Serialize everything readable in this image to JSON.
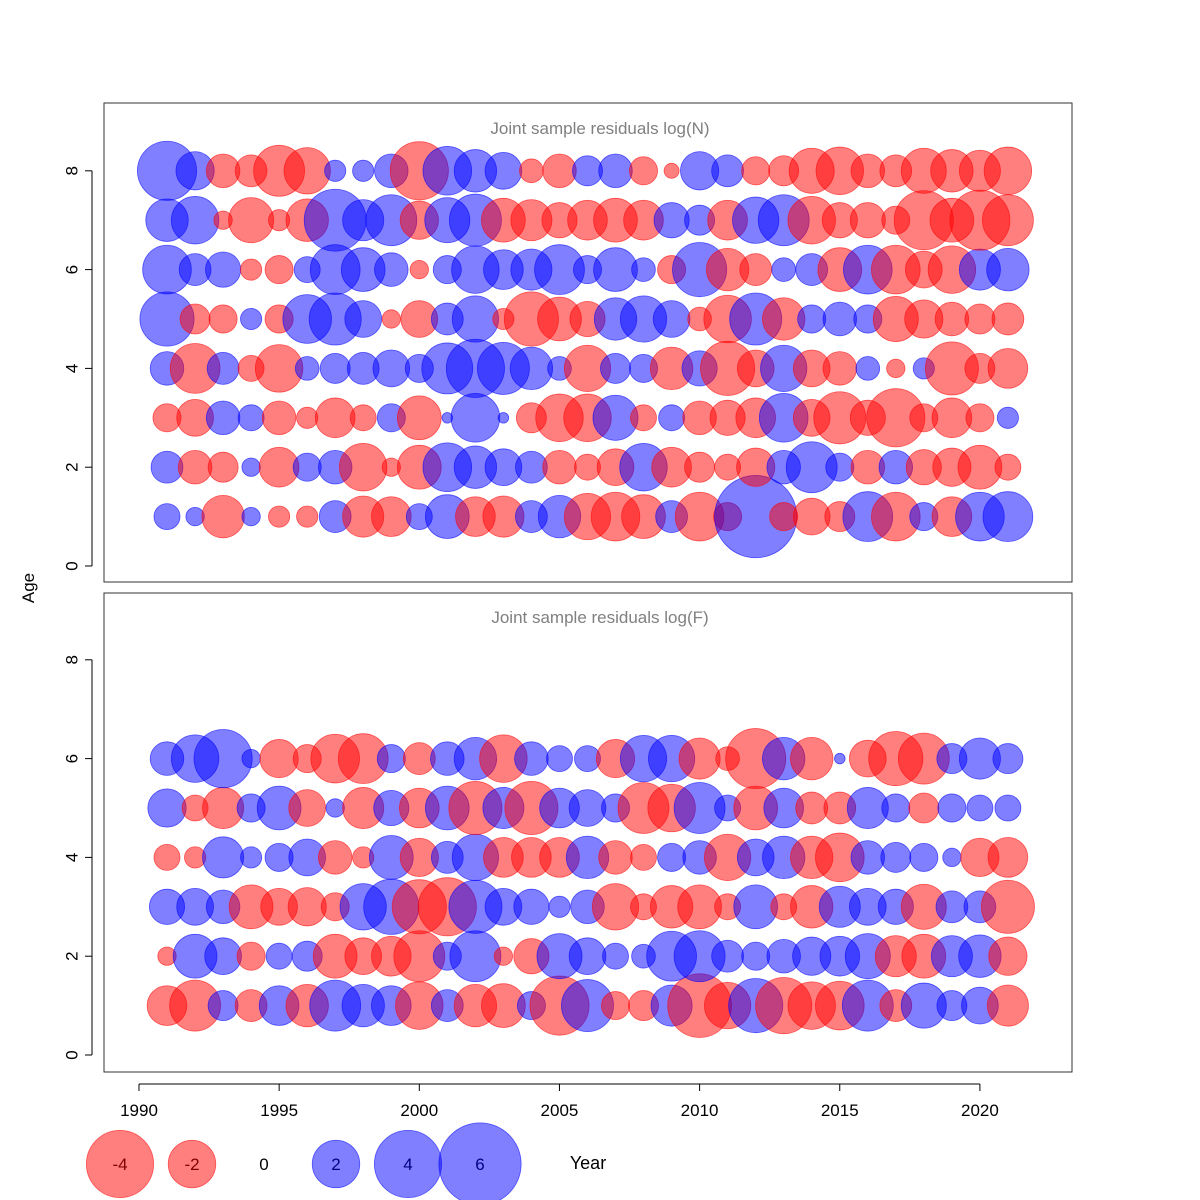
{
  "chart_data": {
    "type": "scatter",
    "shared_axis": {
      "xlabel": "Year",
      "ylabel": "Age",
      "x_ticks": [
        1990,
        1995,
        2000,
        2005,
        2010,
        2015,
        2020
      ],
      "y_ticks": [
        0,
        2,
        4,
        6,
        8
      ],
      "years": [
        1991,
        1992,
        1993,
        1994,
        1995,
        1996,
        1997,
        1998,
        1999,
        2000,
        2001,
        2002,
        2003,
        2004,
        2005,
        2006,
        2007,
        2008,
        2009,
        2010,
        2011,
        2012,
        2013,
        2014,
        2015,
        2016,
        2017,
        2018,
        2019,
        2020,
        2021
      ]
    },
    "colors": {
      "negative": "#ff0000",
      "positive": "#0000ff",
      "fill_opacity": 0.5
    },
    "legend": {
      "position": "bottom-left",
      "values": [
        -4,
        -2,
        0,
        2,
        4,
        6
      ],
      "labels": [
        "-4",
        "-2",
        "0",
        "2",
        "4",
        "6"
      ]
    },
    "panels": [
      {
        "title": "Joint sample residuals log(N)",
        "ages": [
          1,
          2,
          3,
          4,
          5,
          6,
          7,
          8
        ],
        "residuals": [
          [
            0.6,
            0.3,
            -1.6,
            0.3,
            -0.4,
            -0.4,
            0.9,
            -1.5,
            -1.4,
            0.6,
            1.7,
            -1.4,
            -1.5,
            0.9,
            1.6,
            -1.9,
            -2.1,
            -1.7,
            0.9,
            -2.1,
            -0.7,
            6.0,
            -0.7,
            -1.2,
            -0.8,
            2.2,
            -2.1,
            0.7,
            -1.4,
            2.1,
            2.2
          ],
          [
            0.9,
            -1.0,
            -0.8,
            0.3,
            -1.4,
            0.7,
            1.0,
            -2.0,
            -0.3,
            -1.7,
            2.1,
            1.6,
            1.2,
            0.9,
            -1.0,
            -0.6,
            -1.2,
            2.0,
            -1.4,
            -0.8,
            -0.6,
            -1.3,
            1.0,
            2.3,
            0.7,
            -1.0,
            1.0,
            -1.1,
            -1.3,
            -1.7,
            -0.6
          ],
          [
            -0.7,
            -1.2,
            1.0,
            0.6,
            -1.0,
            -0.4,
            -1.4,
            -0.6,
            0.7,
            -1.7,
            0.1,
            2.1,
            0.1,
            -0.8,
            -2.0,
            -2.0,
            1.8,
            -0.6,
            0.6,
            -1.0,
            -1.1,
            -1.4,
            2.1,
            -1.2,
            -2.4,
            -1.1,
            -3.0,
            -0.7,
            -1.4,
            -0.7,
            0.4
          ],
          [
            1.0,
            -2.2,
            0.9,
            -0.6,
            -2.0,
            0.5,
            0.8,
            0.9,
            1.2,
            0.7,
            2.3,
            3.0,
            2.4,
            1.6,
            0.5,
            -1.9,
            0.8,
            0.7,
            -1.6,
            1.1,
            -2.6,
            -1.2,
            1.9,
            -1.2,
            -1.0,
            0.5,
            -0.3,
            0.4,
            -2.5,
            -0.8,
            -1.4
          ],
          [
            2.6,
            -0.8,
            -0.7,
            0.4,
            -0.7,
            2.1,
            2.4,
            1.2,
            -0.3,
            -1.2,
            0.9,
            1.9,
            -0.4,
            -2.6,
            -1.7,
            -1.1,
            1.6,
            1.9,
            1.2,
            -0.5,
            -2.0,
            2.4,
            -1.6,
            0.7,
            1.0,
            0.7,
            -1.8,
            -1.3,
            -1.0,
            -0.8,
            -0.9
          ],
          [
            2.1,
            0.9,
            1.1,
            -0.4,
            -0.7,
            0.6,
            2.2,
            1.7,
            1.0,
            -0.3,
            0.7,
            2.0,
            1.4,
            1.5,
            2.2,
            0.7,
            1.7,
            0.5,
            -0.7,
            2.6,
            -1.6,
            -0.9,
            0.5,
            0.9,
            -1.7,
            2.1,
            -2.1,
            -1.2,
            -2.0,
            1.5,
            1.6
          ],
          [
            1.6,
            2.0,
            -0.3,
            -1.8,
            -0.4,
            -1.6,
            3.4,
            1.5,
            2.3,
            -1.3,
            1.8,
            2.4,
            -1.7,
            -1.5,
            -1.1,
            -1.4,
            -1.7,
            -1.4,
            1.1,
            0.8,
            -1.4,
            1.9,
            2.3,
            -2.0,
            -1.1,
            -1.1,
            -0.7,
            -3.1,
            -1.7,
            -3.2,
            -2.3
          ],
          [
            3.1,
            1.3,
            -1.0,
            -0.9,
            -2.3,
            -1.9,
            0.4,
            0.4,
            1.0,
            -3.0,
            2.1,
            1.6,
            1.2,
            -0.5,
            -1.0,
            0.8,
            1.0,
            -0.7,
            -0.2,
            1.3,
            0.9,
            -0.7,
            -0.8,
            -1.8,
            -2.0,
            -1.0,
            -0.9,
            -1.8,
            -1.6,
            -1.5,
            -2.0
          ]
        ]
      },
      {
        "title": "Joint sample residuals log(F)",
        "ages": [
          1,
          2,
          3,
          4,
          5,
          6
        ],
        "residuals": [
          [
            -1.4,
            -2.3,
            0.8,
            -0.9,
            1.4,
            -1.6,
            2.3,
            1.6,
            1.4,
            -2.0,
            0.9,
            -1.6,
            -1.7,
            0.7,
            -3.1,
            2.4,
            -0.7,
            -0.8,
            1.5,
            -3.6,
            -1.9,
            2.6,
            -2.8,
            -2.0,
            -2.1,
            2.3,
            -0.9,
            1.8,
            0.8,
            1.2,
            -1.5
          ],
          [
            -0.3,
            1.7,
            1.2,
            -0.7,
            0.6,
            0.8,
            -1.7,
            -1.2,
            -1.4,
            -2.3,
            0.7,
            2.3,
            -0.3,
            -1.1,
            1.8,
            1.2,
            0.6,
            0.5,
            2.2,
            2.3,
            0.9,
            0.7,
            1.0,
            1.3,
            1.4,
            1.8,
            -1.5,
            -1.7,
            1.5,
            1.6,
            -1.3
          ],
          [
            1.1,
            1.2,
            1.0,
            -1.7,
            -1.2,
            -1.3,
            -0.7,
            1.9,
            2.7,
            -2.6,
            -3.0,
            2.5,
            1.2,
            1.1,
            0.4,
            1.0,
            -1.9,
            -0.6,
            -1.6,
            -1.7,
            -0.6,
            1.7,
            -0.6,
            -1.6,
            1.5,
            1.2,
            1.1,
            -1.8,
            0.9,
            0.9,
            -2.5
          ],
          [
            -0.6,
            -0.4,
            1.5,
            0.4,
            0.7,
            1.2,
            -1.0,
            -0.4,
            1.7,
            -1.3,
            0.9,
            1.9,
            -1.4,
            -1.4,
            -1.4,
            1.6,
            -1.0,
            -0.6,
            0.7,
            1.0,
            -1.9,
            1.2,
            1.6,
            -1.6,
            -2.1,
            1.0,
            0.8,
            0.7,
            0.3,
            -1.3,
            -1.4
          ],
          [
            1.3,
            -0.6,
            -1.5,
            0.7,
            1.7,
            -1.2,
            0.3,
            -1.5,
            1.1,
            -1.4,
            1.7,
            -2.5,
            1.5,
            -2.5,
            1.4,
            1.2,
            0.7,
            -2.3,
            -2.0,
            2.3,
            0.6,
            -1.7,
            1.4,
            -0.9,
            -0.9,
            1.5,
            0.7,
            -0.8,
            0.7,
            0.6,
            0.6
          ],
          [
            1.0,
            2.0,
            3.0,
            0.3,
            -1.3,
            -0.7,
            -2.1,
            -2.2,
            0.7,
            -0.9,
            1.0,
            1.6,
            -2.0,
            1.0,
            0.6,
            0.6,
            -1.3,
            1.9,
            1.9,
            -1.5,
            -0.5,
            -3.2,
            1.6,
            -1.6,
            0.1,
            -1.2,
            -2.6,
            -2.3,
            0.8,
            1.5,
            0.8
          ]
        ]
      }
    ]
  }
}
